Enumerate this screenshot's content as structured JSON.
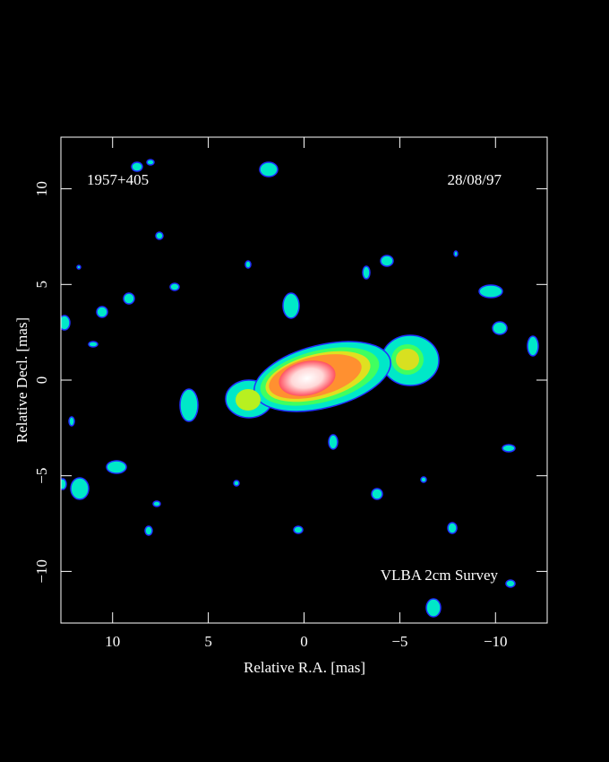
{
  "chart_data": {
    "type": "image",
    "annotations": [
      "1957+405",
      "28/08/97",
      "VLBA 2cm Survey"
    ],
    "xlabel": "Relative R.A. [mas]",
    "ylabel": "Relative Decl. [mas]",
    "xlim": [
      12.7,
      -12.7
    ],
    "ylim": [
      -12.7,
      12.7
    ],
    "xticks": [
      10,
      5,
      0,
      {
        "value": -5,
        "label": "−5"
      },
      {
        "value": -10,
        "label": "−10"
      }
    ],
    "yticks": [
      {
        "value": -10,
        "label": "−10"
      },
      {
        "value": -5,
        "label": "−5"
      },
      0,
      5,
      10
    ]
  }
}
